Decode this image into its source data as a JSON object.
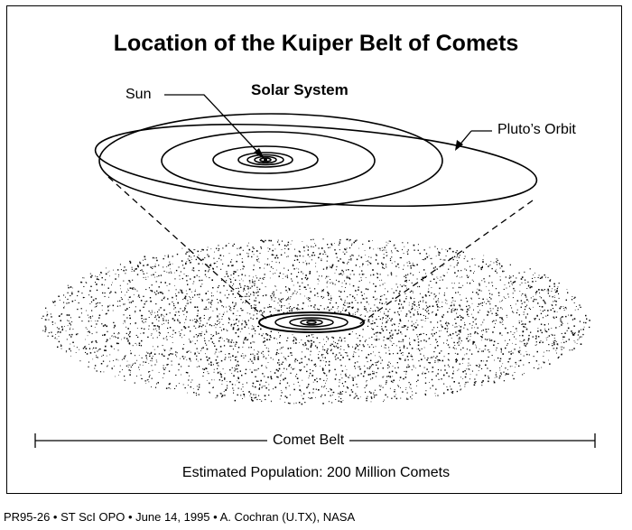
{
  "title": "Location of the Kuiper Belt of Comets",
  "subtitle": "Solar System",
  "labels": {
    "sun": "Sun",
    "pluto_orbit": "Pluto’s Orbit",
    "comet_belt": "Comet Belt"
  },
  "population": "Estimated Population:  200 Million Comets",
  "credit": "PR95-26 • ST ScI OPO • June 14, 1995 • A. Cochran (U.TX), NASA"
}
